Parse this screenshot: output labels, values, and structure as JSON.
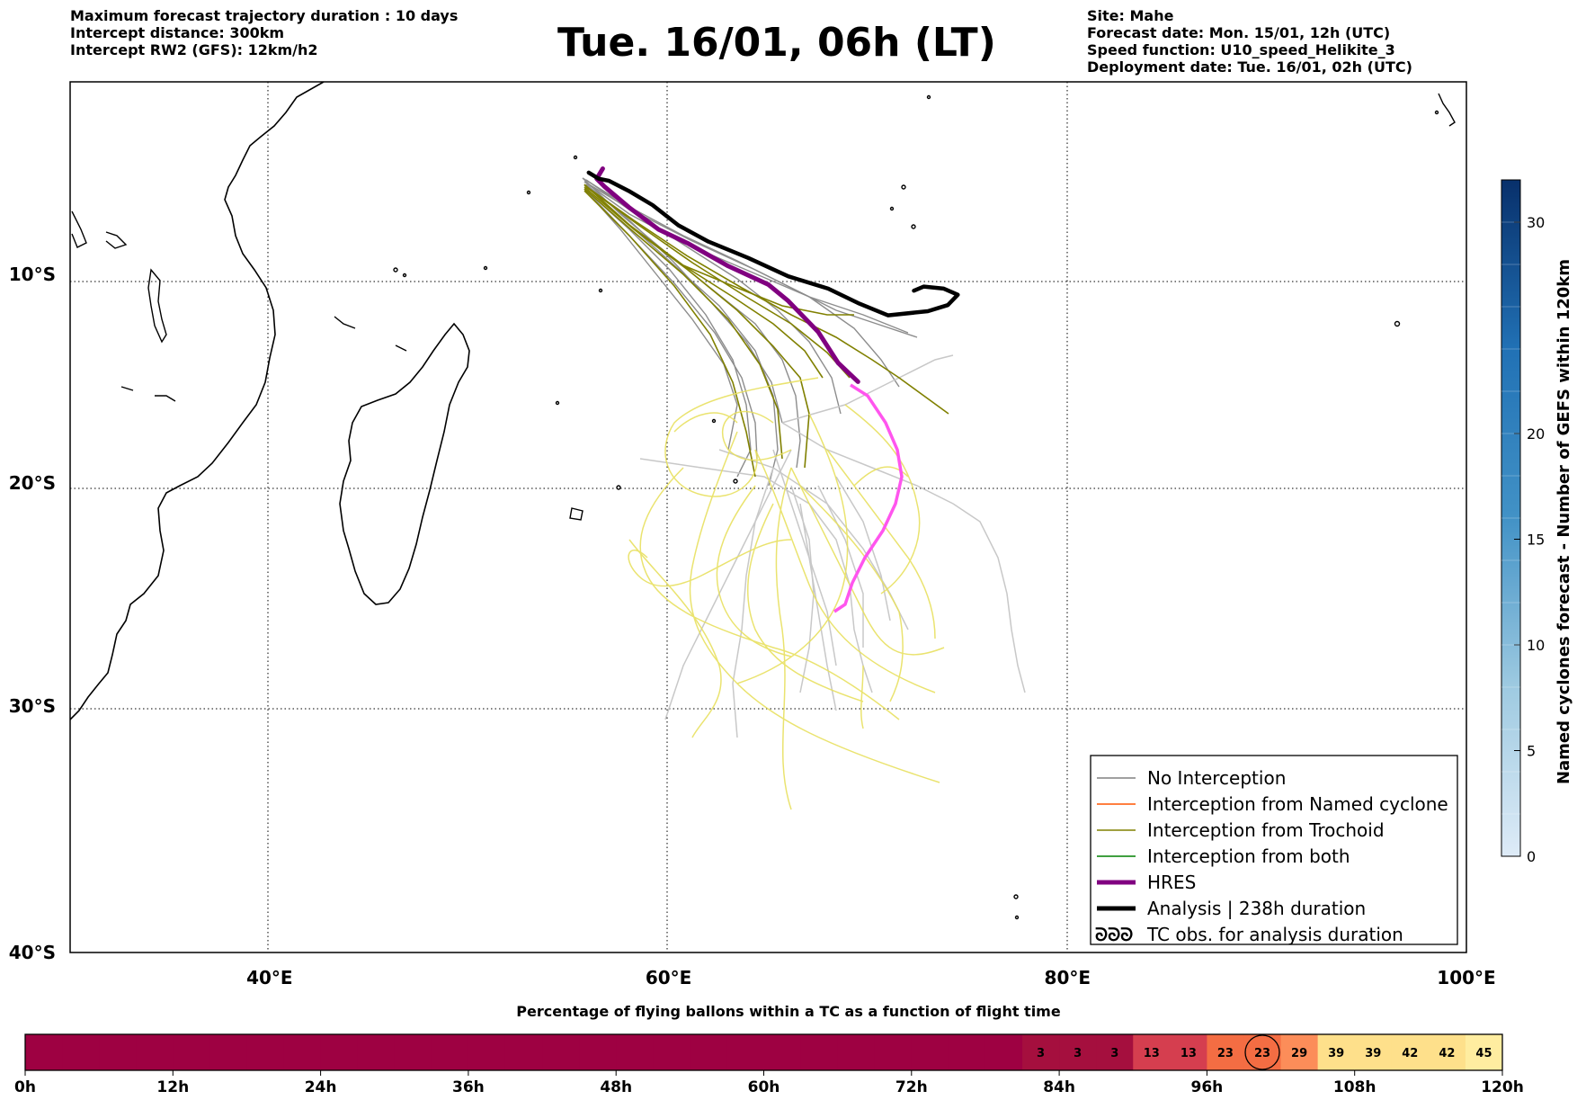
{
  "header": {
    "left_lines": [
      "Maximum forecast trajectory duration : 10 days",
      "Intercept distance: 300km",
      "Intercept RW2 (GFS):  12km/h2"
    ],
    "title": "Tue. 16/01, 06h (LT)",
    "right_lines": [
      "Site: Mahe",
      "Forecast date: Mon. 15/01, 12h (UTC)",
      "Speed function: U10_speed_Helikite_3",
      "Deployment date: Tue. 16/01, 02h (UTC)"
    ]
  },
  "map": {
    "lon_range": [
      30,
      100
    ],
    "lat_range": [
      -40,
      -0.5
    ],
    "lat_ticks": [
      {
        "lat": -10,
        "label": "10°S"
      },
      {
        "lat": -20,
        "label": "20°S"
      },
      {
        "lat": -30,
        "label": "30°S"
      },
      {
        "lat": -40,
        "label": "40°S"
      }
    ],
    "lon_ticks": [
      {
        "lon": 40,
        "label": "40°E"
      },
      {
        "lon": 60,
        "label": "60°E"
      },
      {
        "lon": 80,
        "label": "80°E"
      },
      {
        "lon": 100,
        "label": "100°E"
      }
    ],
    "grid": "dotted"
  },
  "legend": {
    "items": [
      {
        "label": "No Interception",
        "color": "#808080",
        "style": "thin"
      },
      {
        "label": "Interception from Named cyclone",
        "color": "#ff5500",
        "style": "thin"
      },
      {
        "label": "Interception from Trochoid",
        "color": "#808000",
        "style": "thin"
      },
      {
        "label": "Interception from both",
        "color": "#008000",
        "style": "thin"
      },
      {
        "label": "HRES",
        "color": "#800080",
        "style": "thick"
      },
      {
        "label": "Analysis | 238h duration",
        "color": "#000000",
        "style": "thick"
      },
      {
        "label": "TC obs. for analysis duration",
        "color": "#000000",
        "style": "symbol",
        "symbol": "ᘐᘐᘐ"
      }
    ]
  },
  "colorbar": {
    "label": "Named cyclones forecast - Number of GEFS within 120km",
    "ticks": [
      0,
      5,
      10,
      15,
      20,
      30
    ],
    "range": [
      0,
      32
    ],
    "colors": [
      "#deebf7",
      "#c6dbef",
      "#9ecae1",
      "#6baed6",
      "#4292c6",
      "#2171b5",
      "#08519c",
      "#08306b"
    ]
  },
  "bottom_bar": {
    "title": "Percentage of flying ballons within a TC as a function of flight time",
    "time_labels": [
      "0h",
      "12h",
      "24h",
      "36h",
      "48h",
      "60h",
      "72h",
      "84h",
      "96h",
      "108h",
      "120h"
    ],
    "segment_hours": 3,
    "segments": [
      0,
      0,
      0,
      0,
      0,
      0,
      0,
      0,
      0,
      0,
      0,
      0,
      0,
      0,
      0,
      0,
      0,
      0,
      0,
      0,
      0,
      0,
      0,
      0,
      0,
      0,
      0,
      3,
      3,
      3,
      13,
      13,
      23,
      23,
      29,
      39,
      39,
      42,
      42,
      45
    ],
    "circled_segment": 33,
    "colors": {
      "low": "#9e0142",
      "c3": "#a50f3e",
      "c13": "#d53e4f",
      "c23": "#f46d43",
      "c29": "#fc8d59",
      "c39": "#fee08b",
      "c42": "#fee08b",
      "c45": "#ffeda0"
    }
  },
  "chart_data": {
    "type": "line",
    "title": "Tue. 16/01, 06h (LT)",
    "xlabel": "",
    "ylabel": "",
    "series": [
      {
        "name": "HRES",
        "color": "#800080",
        "points": [
          [
            56.7,
            -4.8
          ],
          [
            56.4,
            -5.3
          ],
          [
            56.8,
            -5.7
          ],
          [
            58,
            -6.7
          ],
          [
            59.5,
            -7.8
          ],
          [
            61,
            -8.5
          ],
          [
            63,
            -9.6
          ],
          [
            65,
            -10.5
          ],
          [
            66,
            -11.3
          ],
          [
            67.5,
            -12.8
          ],
          [
            68.5,
            -14.3
          ],
          [
            69.5,
            -15.2
          ]
        ]
      },
      {
        "name": "Analysis | 238h duration",
        "color": "#000000",
        "points": [
          [
            56,
            -5
          ],
          [
            56.5,
            -5.3
          ],
          [
            57,
            -5.4
          ],
          [
            58,
            -5.9
          ],
          [
            59.2,
            -6.6
          ],
          [
            60.5,
            -7.6
          ],
          [
            62,
            -8.4
          ],
          [
            64,
            -9.2
          ],
          [
            66,
            -10.1
          ],
          [
            68,
            -10.7
          ],
          [
            69.5,
            -11.4
          ],
          [
            71,
            -12
          ],
          [
            73,
            -11.8
          ],
          [
            74,
            -11.5
          ],
          [
            74.5,
            -11
          ],
          [
            73.8,
            -10.7
          ],
          [
            72.8,
            -10.6
          ],
          [
            72.3,
            -10.8
          ]
        ]
      }
    ]
  }
}
